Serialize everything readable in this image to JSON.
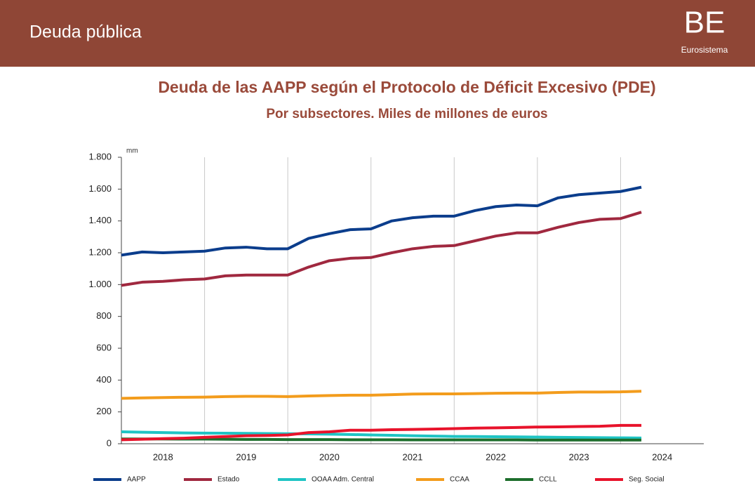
{
  "header": {
    "title": "Deuda pública",
    "logo": "BE",
    "logo_subtitle": "Eurosistema"
  },
  "chart_data": {
    "type": "line",
    "title": "Deuda de las AAPP según el Protocolo de Déficit Excesivo (PDE)",
    "subtitle": "Por subsectores. Miles de millones de euros",
    "y_unit": "mm",
    "x": [
      2018,
      2018.25,
      2018.5,
      2018.75,
      2019,
      2019.25,
      2019.5,
      2019.75,
      2020,
      2020.25,
      2020.5,
      2020.75,
      2021,
      2021.25,
      2021.5,
      2021.75,
      2022,
      2022.25,
      2022.5,
      2022.75,
      2023,
      2023.25,
      2023.5,
      2023.75,
      2024,
      2024.25
    ],
    "xlim": [
      2018,
      2025
    ],
    "xticks": [
      {
        "value": 2018.5,
        "label": "2018"
      },
      {
        "value": 2019.5,
        "label": "2019"
      },
      {
        "value": 2020.5,
        "label": "2020"
      },
      {
        "value": 2021.5,
        "label": "2021"
      },
      {
        "value": 2022.5,
        "label": "2022"
      },
      {
        "value": 2023.5,
        "label": "2023"
      },
      {
        "value": 2024.5,
        "label": "2024"
      }
    ],
    "ylim": [
      0,
      1800
    ],
    "yticks": [
      0,
      200,
      400,
      600,
      800,
      {
        "value": 1000,
        "label": "1.000"
      },
      {
        "value": 1200,
        "label": "1.200"
      },
      {
        "value": 1400,
        "label": "1.400"
      },
      {
        "value": 1600,
        "label": "1.600"
      },
      {
        "value": 1800,
        "label": "1.800"
      }
    ],
    "grid": true,
    "legend": "bottom",
    "series": [
      {
        "name": "AAPP",
        "color": "#0b3d8c",
        "values": [
          1185,
          1205,
          1200,
          1205,
          1210,
          1230,
          1235,
          1225,
          1225,
          1290,
          1320,
          1345,
          1350,
          1400,
          1420,
          1430,
          1430,
          1465,
          1490,
          1500,
          1495,
          1545,
          1565,
          1575,
          1585,
          1612
        ]
      },
      {
        "name": "Estado",
        "color": "#a0283f",
        "values": [
          995,
          1015,
          1020,
          1030,
          1035,
          1055,
          1060,
          1060,
          1060,
          1110,
          1150,
          1165,
          1170,
          1200,
          1225,
          1240,
          1245,
          1275,
          1305,
          1325,
          1325,
          1360,
          1390,
          1410,
          1415,
          1455
        ]
      },
      {
        "name": "OOAA Adm. Central",
        "color": "#1fc4c4",
        "values": [
          75,
          72,
          70,
          68,
          67,
          66,
          65,
          64,
          63,
          62,
          60,
          58,
          55,
          53,
          50,
          48,
          46,
          45,
          44,
          43,
          42,
          40,
          39,
          38,
          37,
          36
        ]
      },
      {
        "name": "CCAA",
        "color": "#f39c1c",
        "values": [
          285,
          288,
          290,
          292,
          293,
          296,
          298,
          298,
          296,
          300,
          303,
          305,
          305,
          308,
          312,
          313,
          313,
          315,
          317,
          318,
          318,
          322,
          325,
          325,
          326,
          330
        ]
      },
      {
        "name": "CCLL",
        "color": "#1d6e2c",
        "values": [
          30,
          30,
          30,
          29,
          29,
          28,
          27,
          27,
          26,
          26,
          26,
          25,
          25,
          25,
          24,
          24,
          24,
          24,
          24,
          24,
          23,
          23,
          23,
          23,
          23,
          23
        ]
      },
      {
        "name": "Seg. Social",
        "color": "#e8132b",
        "values": [
          25,
          28,
          32,
          35,
          40,
          45,
          50,
          52,
          55,
          70,
          75,
          85,
          85,
          88,
          90,
          92,
          95,
          98,
          100,
          102,
          105,
          106,
          108,
          110,
          115,
          115
        ]
      }
    ]
  }
}
